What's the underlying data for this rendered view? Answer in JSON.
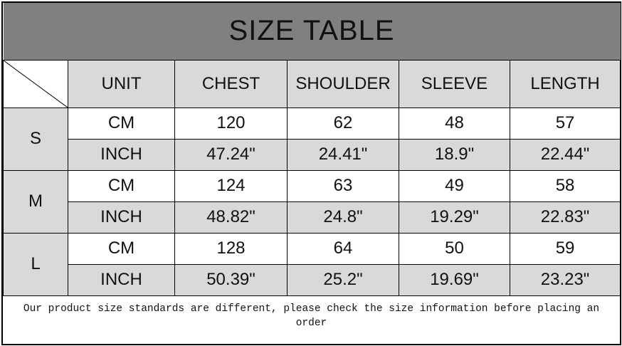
{
  "title": "SIZE TABLE",
  "headers": [
    "UNIT",
    "CHEST",
    "SHOULDER",
    "SLEEVE",
    "LENGTH"
  ],
  "rows": [
    {
      "size": "S",
      "cm": {
        "unit": "CM",
        "values": [
          "120",
          "62",
          "48",
          "57"
        ]
      },
      "inch": {
        "unit": "INCH",
        "values": [
          "47.24\"",
          "24.41\"",
          "18.9\"",
          "22.44\""
        ]
      }
    },
    {
      "size": "M",
      "cm": {
        "unit": "CM",
        "values": [
          "124",
          "63",
          "49",
          "58"
        ]
      },
      "inch": {
        "unit": "INCH",
        "values": [
          "48.82\"",
          "24.8\"",
          "19.29\"",
          "22.83\""
        ]
      }
    },
    {
      "size": "L",
      "cm": {
        "unit": "CM",
        "values": [
          "128",
          "64",
          "50",
          "59"
        ]
      },
      "inch": {
        "unit": "INCH",
        "values": [
          "50.39\"",
          "25.2\"",
          "19.69\"",
          "23.23\""
        ]
      }
    }
  ],
  "footnote": "Our product size standards are different, please check the size information before placing an order",
  "colors": {
    "title_bg": "#808080",
    "header_bg": "#d9d9d9",
    "inch_row_bg": "#d9d9d9"
  }
}
